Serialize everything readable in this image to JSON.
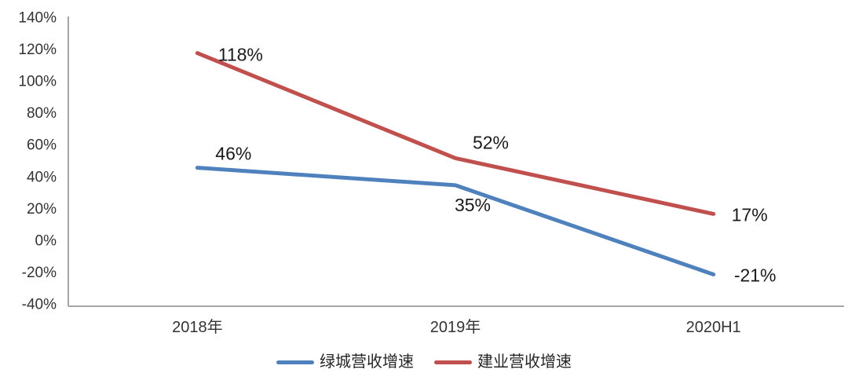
{
  "chart_data": {
    "type": "line",
    "title": "",
    "xlabel": "",
    "ylabel": "",
    "categories": [
      "2018年",
      "2019年",
      "2020H1"
    ],
    "series": [
      {
        "name": "绿城营收增速",
        "color": "#4F81BD",
        "values": [
          46,
          35,
          -21
        ],
        "labels": [
          "46%",
          "35%",
          "-21%"
        ]
      },
      {
        "name": "建业营收增速",
        "color": "#C0504D",
        "values": [
          118,
          52,
          17
        ],
        "labels": [
          "118%",
          "52%",
          "17%"
        ]
      }
    ],
    "ylim": [
      -40,
      140
    ],
    "ytick_step": 20,
    "yticks": [
      "140%",
      "120%",
      "100%",
      "80%",
      "60%",
      "40%",
      "20%",
      "0%",
      "-20%",
      "-40%"
    ],
    "grid": false,
    "legend_position": "bottom",
    "axis_color": "#A6A6A6",
    "tick_label_color": "#333333",
    "data_label_color": "#1a1a1a"
  }
}
